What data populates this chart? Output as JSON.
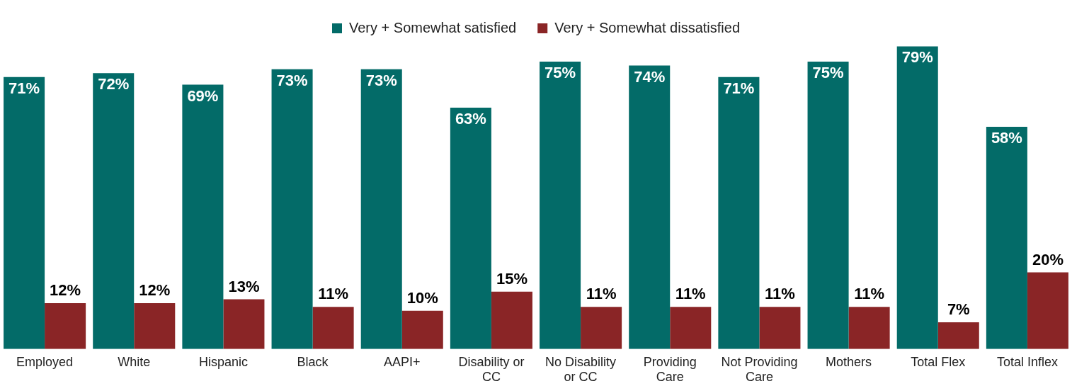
{
  "chart_data": {
    "type": "bar",
    "categories": [
      "Employed",
      "White",
      "Hispanic",
      "Black",
      "AAPI+",
      "Disability or CC",
      "No Disability or CC",
      "Providing Care",
      "Not Providing Care",
      "Mothers",
      "Total Flex",
      "Total Inflex"
    ],
    "series": [
      {
        "name": "Very + Somewhat satisfied",
        "color": "#036b68",
        "values": [
          71,
          72,
          69,
          73,
          73,
          63,
          75,
          74,
          71,
          75,
          79,
          58
        ],
        "value_labels": [
          "71%",
          "72%",
          "69%",
          "73%",
          "73%",
          "63%",
          "75%",
          "74%",
          "71%",
          "75%",
          "79%",
          "58%"
        ]
      },
      {
        "name": "Very + Somewhat dissatisfied",
        "color": "#8a2526",
        "values": [
          12,
          12,
          13,
          11,
          10,
          15,
          11,
          11,
          11,
          11,
          7,
          20
        ],
        "value_labels": [
          "12%",
          "12%",
          "13%",
          "11%",
          "10%",
          "15%",
          "11%",
          "11%",
          "11%",
          "11%",
          "7%",
          "20%"
        ]
      }
    ],
    "grid": false,
    "legend": "top",
    "tick_labels": "x"
  }
}
